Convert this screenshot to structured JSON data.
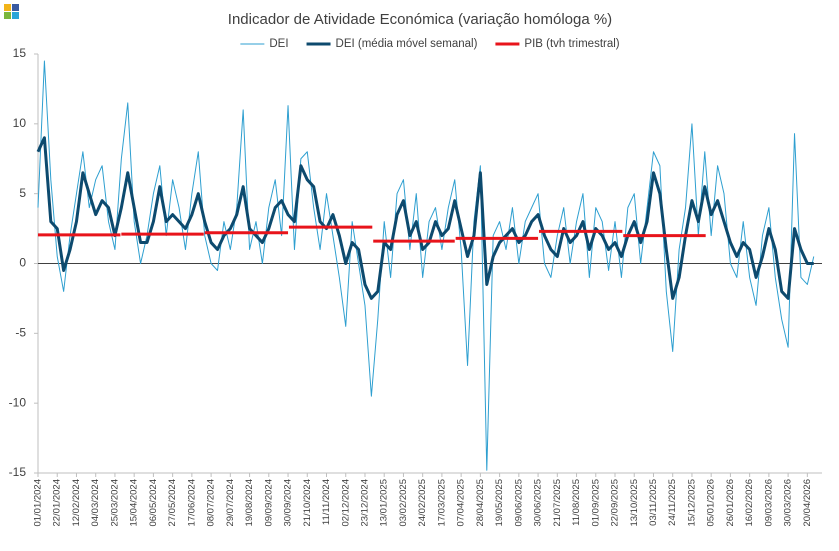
{
  "chart_data": {
    "type": "line",
    "title": "Indicador de Atividade Económica (variação homóloga %)",
    "ylim": [
      -15,
      15
    ],
    "yticks": [
      -15,
      -10,
      -5,
      0,
      5,
      10,
      15
    ],
    "xlim": [
      0,
      856
    ],
    "xticks": [
      {
        "value": 0,
        "label": "01/01/2024"
      },
      {
        "value": 21,
        "label": "22/01/2024"
      },
      {
        "value": 42,
        "label": "12/02/2024"
      },
      {
        "value": 63,
        "label": "04/03/2024"
      },
      {
        "value": 84,
        "label": "25/03/2024"
      },
      {
        "value": 105,
        "label": "15/04/2024"
      },
      {
        "value": 126,
        "label": "06/05/2024"
      },
      {
        "value": 147,
        "label": "27/05/2024"
      },
      {
        "value": 168,
        "label": "17/06/2024"
      },
      {
        "value": 189,
        "label": "08/07/2024"
      },
      {
        "value": 210,
        "label": "29/07/2024"
      },
      {
        "value": 231,
        "label": "19/08/2024"
      },
      {
        "value": 252,
        "label": "09/09/2024"
      },
      {
        "value": 273,
        "label": "30/09/2024"
      },
      {
        "value": 294,
        "label": "21/10/2024"
      },
      {
        "value": 315,
        "label": "11/11/2024"
      },
      {
        "value": 336,
        "label": "02/12/2024"
      },
      {
        "value": 357,
        "label": "23/12/2024"
      },
      {
        "value": 378,
        "label": "13/01/2025"
      },
      {
        "value": 399,
        "label": "03/02/2025"
      },
      {
        "value": 420,
        "label": "24/02/2025"
      },
      {
        "value": 441,
        "label": "17/03/2025"
      },
      {
        "value": 462,
        "label": "07/04/2025"
      },
      {
        "value": 483,
        "label": "28/04/2025"
      },
      {
        "value": 504,
        "label": "19/05/2025"
      },
      {
        "value": 525,
        "label": "09/06/2025"
      },
      {
        "value": 546,
        "label": "30/06/2025"
      },
      {
        "value": 567,
        "label": "21/07/2025"
      },
      {
        "value": 588,
        "label": "11/08/2025"
      },
      {
        "value": 609,
        "label": "01/09/2025"
      },
      {
        "value": 630,
        "label": "22/09/2025"
      },
      {
        "value": 651,
        "label": "13/10/2025"
      },
      {
        "value": 672,
        "label": "03/11/2025"
      },
      {
        "value": 693,
        "label": "24/11/2025"
      },
      {
        "value": 714,
        "label": "15/12/2025"
      },
      {
        "value": 735,
        "label": "05/01/2026"
      },
      {
        "value": 756,
        "label": "26/01/2026"
      },
      {
        "value": 777,
        "label": "16/02/2026"
      },
      {
        "value": 798,
        "label": "09/03/2026"
      },
      {
        "value": 819,
        "label": "30/03/2026"
      },
      {
        "value": 840,
        "label": "20/04/2026"
      }
    ],
    "x": [
      0,
      7,
      14,
      21,
      28,
      35,
      42,
      49,
      56,
      63,
      70,
      77,
      84,
      91,
      98,
      105,
      112,
      119,
      126,
      133,
      140,
      147,
      154,
      161,
      168,
      175,
      182,
      189,
      196,
      203,
      210,
      217,
      224,
      231,
      238,
      245,
      252,
      259,
      266,
      273,
      280,
      287,
      294,
      301,
      308,
      315,
      322,
      329,
      336,
      343,
      350,
      357,
      364,
      371,
      378,
      385,
      392,
      399,
      406,
      413,
      420,
      427,
      434,
      441,
      448,
      455,
      462,
      469,
      476,
      483,
      490,
      497,
      504,
      511,
      518,
      525,
      532,
      539,
      546,
      553,
      560,
      567,
      574,
      581,
      588,
      595,
      602,
      609,
      616,
      623,
      630,
      637,
      644,
      651,
      658,
      665,
      672,
      679,
      686,
      693,
      700,
      707,
      714,
      721,
      728,
      735,
      742,
      749,
      756,
      763,
      770,
      777,
      784,
      791,
      798,
      805,
      812,
      819,
      826,
      833,
      840,
      847
    ],
    "series": [
      {
        "name": "DEI",
        "color": "#2e9fd0",
        "values": [
          4,
          14.5,
          6,
          0.5,
          -2,
          2,
          5,
          8,
          4,
          6,
          7,
          3,
          1,
          7.5,
          11.5,
          3,
          0,
          2,
          5,
          7,
          2,
          6,
          4,
          1,
          5,
          8,
          2,
          0,
          -0.5,
          3,
          1,
          4,
          11,
          1,
          3,
          0,
          4,
          6,
          2,
          11.3,
          1,
          7.5,
          8,
          4,
          1,
          5,
          2,
          -1,
          -4.5,
          3,
          0,
          -3,
          -9.5,
          -4,
          3,
          -1,
          5,
          6,
          1,
          5,
          -1,
          3,
          4,
          1,
          4,
          6,
          1,
          -7.3,
          3,
          7,
          -14.8,
          2,
          3,
          1,
          4,
          0,
          3,
          4,
          5,
          0,
          -1,
          2,
          4,
          0,
          3,
          5,
          -1,
          4,
          3,
          -0.5,
          3,
          -1,
          4,
          5,
          0,
          4,
          8,
          7,
          -2,
          -6.3,
          1,
          4,
          10,
          2,
          8,
          2,
          7,
          5,
          0,
          -1,
          3,
          -1,
          -3,
          2,
          4,
          -1,
          -4,
          -6,
          9.3,
          -1,
          -1.5,
          0.5
        ]
      },
      {
        "name": "DEI (média móvel semanal)",
        "color": "#0d4a6e",
        "values": [
          8,
          9,
          3,
          2.5,
          -0.5,
          1,
          3,
          6.5,
          5,
          3.5,
          4.5,
          4,
          2,
          4,
          6.5,
          4,
          1.5,
          1.5,
          3,
          5.5,
          3,
          3.5,
          3,
          2.5,
          3.5,
          5,
          3,
          1.5,
          1,
          2,
          2.5,
          3.5,
          5.5,
          2.5,
          2,
          1.5,
          2.5,
          4,
          4.5,
          3.5,
          3,
          7,
          6,
          5.5,
          3,
          2.5,
          3.5,
          2,
          0,
          1.5,
          1,
          -1.5,
          -2.5,
          -2,
          1.5,
          1,
          3.5,
          4.5,
          2,
          3,
          1,
          1.5,
          3,
          2,
          2.5,
          4.5,
          2.5,
          0.5,
          2,
          6.5,
          -1.5,
          0.5,
          1.5,
          2,
          2.5,
          1.5,
          2,
          3,
          3.5,
          2,
          1,
          0.5,
          2.5,
          1.5,
          2,
          3,
          1,
          2.5,
          2,
          1,
          1.5,
          0.5,
          2,
          3,
          1.5,
          3,
          6.5,
          5,
          1,
          -2.5,
          -1,
          2,
          4.5,
          3,
          5.5,
          3.5,
          4.5,
          3,
          1.5,
          0.5,
          1.5,
          1,
          -1,
          0.5,
          2.5,
          1,
          -2,
          -2.5,
          2.5,
          1,
          0,
          0
        ]
      }
    ],
    "pib": {
      "name": "PIB (tvh trimestral)",
      "color": "#e8141b",
      "x": [
        0,
        91,
        182,
        274,
        366,
        456,
        547,
        639
      ],
      "x_end": [
        90,
        181,
        273,
        365,
        455,
        546,
        638,
        729
      ],
      "values": [
        2.05,
        2.1,
        2.2,
        2.6,
        1.6,
        1.8,
        2.3,
        2.0
      ]
    }
  }
}
